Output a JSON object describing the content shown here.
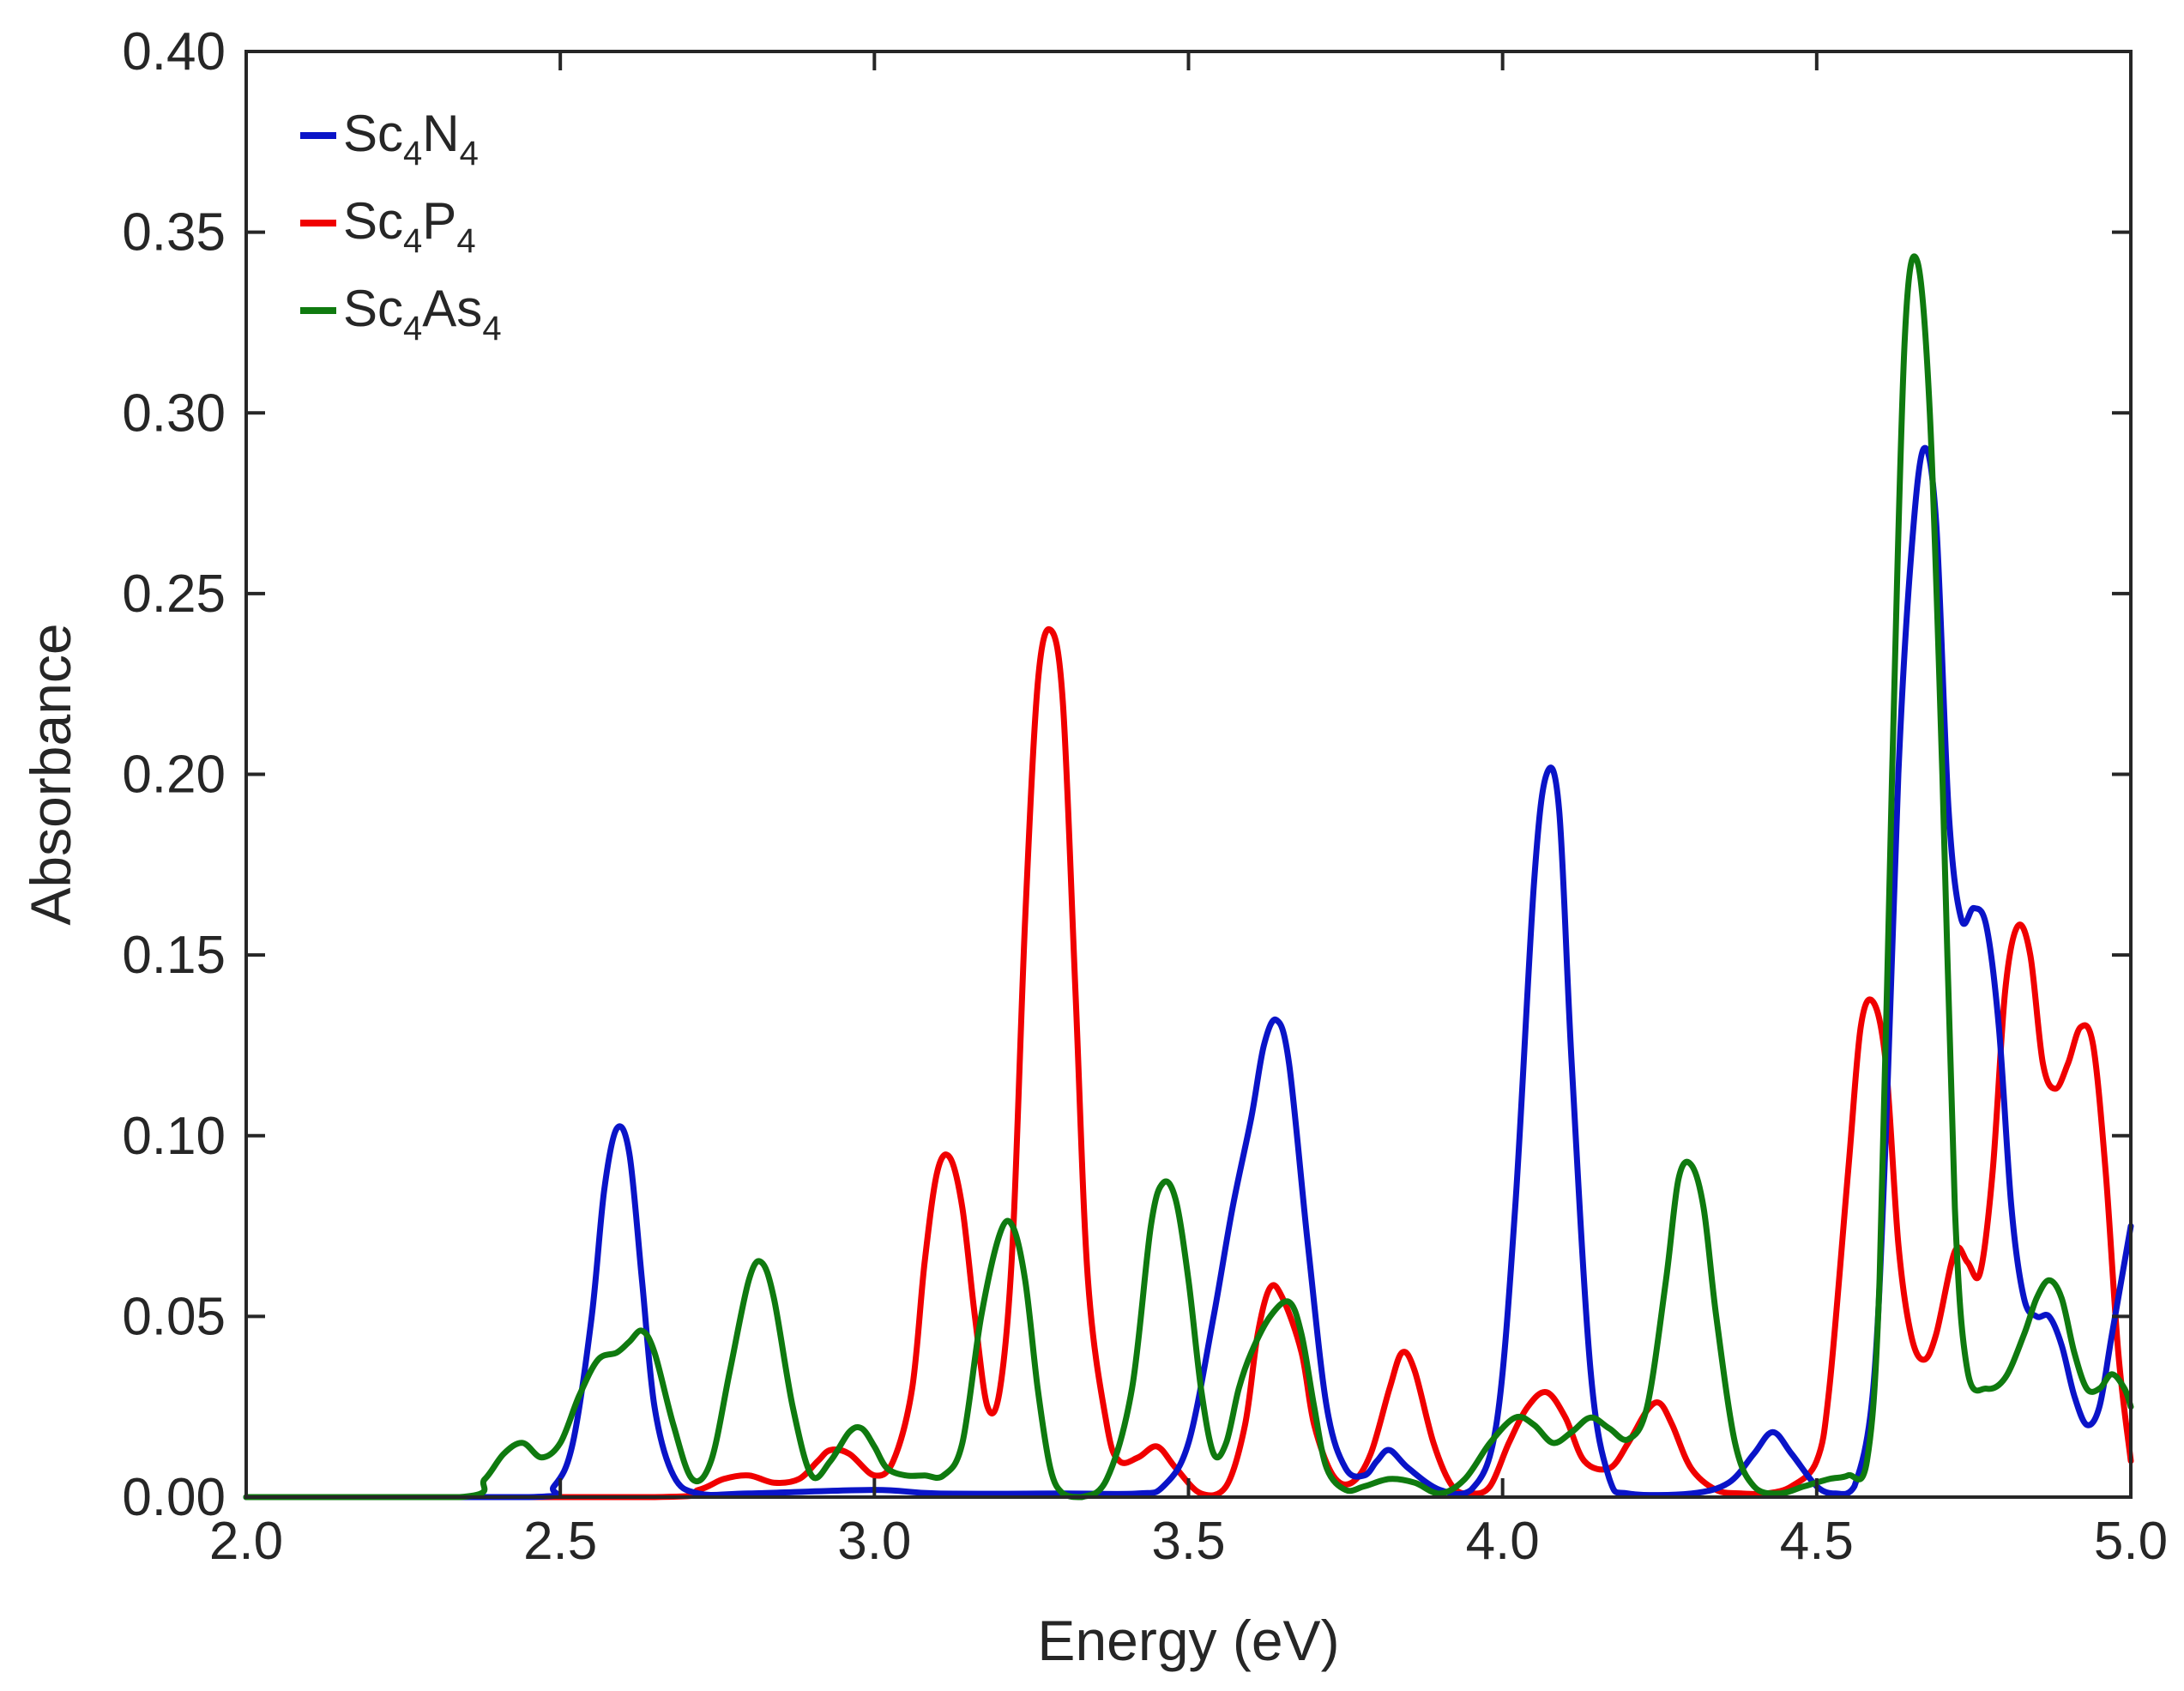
{
  "chart_data": {
    "type": "line",
    "title": "",
    "xlabel": "Energy (eV)",
    "ylabel": "Absorbance",
    "xlim": [
      2.0,
      5.0
    ],
    "ylim": [
      0.0,
      0.4
    ],
    "xticks": [
      "2.0",
      "2.5",
      "3.0",
      "3.5",
      "4.0",
      "4.5",
      "5.0"
    ],
    "yticks": [
      "0.00",
      "0.05",
      "0.10",
      "0.15",
      "0.20",
      "0.25",
      "0.30",
      "0.35",
      "0.40"
    ],
    "grid": false,
    "legend_position": "top-left",
    "series": [
      {
        "name": "Sc4N4",
        "label_parts": [
          [
            "Sc",
            false
          ],
          [
            "4",
            true
          ],
          [
            "N",
            false
          ],
          [
            "4",
            true
          ]
        ],
        "color": "#0a14c8",
        "x": [
          2.0,
          2.45,
          2.49,
          2.52,
          2.55,
          2.57,
          2.59,
          2.61,
          2.63,
          2.65,
          2.68,
          2.72,
          2.8,
          3.0,
          3.1,
          3.3,
          3.42,
          3.46,
          3.5,
          3.54,
          3.57,
          3.6,
          3.62,
          3.64,
          3.66,
          3.69,
          3.72,
          3.75,
          3.78,
          3.8,
          3.82,
          3.85,
          3.9,
          3.95,
          3.99,
          4.02,
          4.05,
          4.07,
          4.09,
          4.11,
          4.14,
          4.17,
          4.2,
          4.3,
          4.36,
          4.4,
          4.43,
          4.46,
          4.5,
          4.53,
          4.56,
          4.59,
          4.61,
          4.63,
          4.65,
          4.67,
          4.69,
          4.71,
          4.73,
          4.75,
          4.77,
          4.79,
          4.81,
          4.83,
          4.85,
          4.87,
          4.89,
          4.91,
          4.93,
          4.95,
          4.97,
          5.0
        ],
        "y": [
          0.0,
          0.0,
          0.003,
          0.015,
          0.05,
          0.085,
          0.102,
          0.095,
          0.06,
          0.025,
          0.006,
          0.001,
          0.001,
          0.002,
          0.001,
          0.001,
          0.001,
          0.003,
          0.015,
          0.05,
          0.08,
          0.105,
          0.125,
          0.132,
          0.12,
          0.07,
          0.025,
          0.008,
          0.006,
          0.01,
          0.013,
          0.008,
          0.002,
          0.002,
          0.02,
          0.08,
          0.17,
          0.2,
          0.19,
          0.12,
          0.035,
          0.005,
          0.001,
          0.001,
          0.004,
          0.012,
          0.018,
          0.012,
          0.003,
          0.001,
          0.003,
          0.03,
          0.1,
          0.2,
          0.26,
          0.29,
          0.27,
          0.19,
          0.16,
          0.163,
          0.158,
          0.13,
          0.08,
          0.055,
          0.05,
          0.05,
          0.042,
          0.028,
          0.02,
          0.025,
          0.045,
          0.075
        ]
      },
      {
        "name": "Sc4P4",
        "label_parts": [
          [
            "Sc",
            false
          ],
          [
            "4",
            true
          ],
          [
            "P",
            false
          ],
          [
            "4",
            true
          ]
        ],
        "color": "#f00000",
        "x": [
          2.0,
          2.65,
          2.72,
          2.76,
          2.8,
          2.84,
          2.88,
          2.91,
          2.93,
          2.96,
          3.0,
          3.03,
          3.06,
          3.08,
          3.1,
          3.12,
          3.14,
          3.16,
          3.18,
          3.2,
          3.22,
          3.24,
          3.26,
          3.28,
          3.3,
          3.32,
          3.34,
          3.37,
          3.39,
          3.42,
          3.45,
          3.48,
          3.52,
          3.56,
          3.59,
          3.61,
          3.63,
          3.65,
          3.68,
          3.7,
          3.73,
          3.76,
          3.79,
          3.82,
          3.84,
          3.86,
          3.89,
          3.92,
          3.95,
          3.98,
          4.01,
          4.04,
          4.07,
          4.1,
          4.13,
          4.17,
          4.2,
          4.23,
          4.25,
          4.27,
          4.3,
          4.34,
          4.38,
          4.42,
          4.46,
          4.5,
          4.52,
          4.55,
          4.57,
          4.59,
          4.61,
          4.63,
          4.65,
          4.67,
          4.69,
          4.72,
          4.74,
          4.76,
          4.78,
          4.8,
          4.82,
          4.84,
          4.86,
          4.88,
          4.9,
          4.92,
          4.94,
          4.96,
          4.98,
          5.0
        ],
        "y": [
          0.0,
          0.0,
          0.002,
          0.005,
          0.006,
          0.004,
          0.005,
          0.01,
          0.013,
          0.012,
          0.006,
          0.01,
          0.03,
          0.065,
          0.09,
          0.094,
          0.08,
          0.05,
          0.025,
          0.03,
          0.07,
          0.16,
          0.225,
          0.24,
          0.22,
          0.14,
          0.06,
          0.02,
          0.01,
          0.011,
          0.014,
          0.008,
          0.001,
          0.003,
          0.02,
          0.045,
          0.058,
          0.055,
          0.04,
          0.02,
          0.006,
          0.004,
          0.012,
          0.03,
          0.04,
          0.035,
          0.015,
          0.003,
          0.001,
          0.003,
          0.015,
          0.025,
          0.029,
          0.022,
          0.01,
          0.008,
          0.015,
          0.024,
          0.026,
          0.02,
          0.008,
          0.002,
          0.001,
          0.001,
          0.003,
          0.01,
          0.03,
          0.09,
          0.13,
          0.137,
          0.12,
          0.07,
          0.045,
          0.038,
          0.045,
          0.068,
          0.065,
          0.062,
          0.09,
          0.14,
          0.158,
          0.15,
          0.12,
          0.113,
          0.12,
          0.13,
          0.125,
          0.09,
          0.04,
          0.01
        ]
      },
      {
        "name": "Sc4As4",
        "label_parts": [
          [
            "Sc",
            false
          ],
          [
            "4",
            true
          ],
          [
            "As",
            false
          ],
          [
            "4",
            true
          ]
        ],
        "color": "#0f7a0f",
        "x": [
          2.0,
          2.34,
          2.38,
          2.41,
          2.44,
          2.47,
          2.5,
          2.53,
          2.56,
          2.59,
          2.61,
          2.63,
          2.65,
          2.68,
          2.71,
          2.74,
          2.77,
          2.8,
          2.82,
          2.84,
          2.87,
          2.9,
          2.93,
          2.96,
          2.98,
          3.0,
          3.02,
          3.05,
          3.08,
          3.11,
          3.14,
          3.17,
          3.2,
          3.22,
          3.24,
          3.26,
          3.28,
          3.3,
          3.33,
          3.37,
          3.41,
          3.44,
          3.46,
          3.48,
          3.5,
          3.52,
          3.54,
          3.56,
          3.58,
          3.6,
          3.63,
          3.66,
          3.68,
          3.7,
          3.72,
          3.75,
          3.78,
          3.82,
          3.86,
          3.9,
          3.94,
          3.98,
          4.02,
          4.05,
          4.08,
          4.11,
          4.14,
          4.17,
          4.2,
          4.23,
          4.26,
          4.28,
          4.3,
          4.32,
          4.34,
          4.37,
          4.4,
          4.44,
          4.48,
          4.52,
          4.55,
          4.58,
          4.6,
          4.62,
          4.64,
          4.66,
          4.68,
          4.7,
          4.72,
          4.74,
          4.77,
          4.8,
          4.83,
          4.85,
          4.87,
          4.89,
          4.91,
          4.93,
          4.95,
          4.97,
          4.99,
          5.0
        ],
        "y": [
          0.0,
          0.0,
          0.005,
          0.012,
          0.015,
          0.011,
          0.015,
          0.028,
          0.038,
          0.04,
          0.043,
          0.046,
          0.04,
          0.02,
          0.005,
          0.01,
          0.035,
          0.06,
          0.065,
          0.055,
          0.025,
          0.006,
          0.01,
          0.018,
          0.019,
          0.014,
          0.008,
          0.006,
          0.006,
          0.006,
          0.015,
          0.05,
          0.073,
          0.075,
          0.06,
          0.03,
          0.008,
          0.001,
          0.0,
          0.005,
          0.03,
          0.075,
          0.087,
          0.082,
          0.06,
          0.03,
          0.012,
          0.015,
          0.03,
          0.04,
          0.05,
          0.054,
          0.045,
          0.025,
          0.008,
          0.002,
          0.003,
          0.005,
          0.004,
          0.001,
          0.005,
          0.015,
          0.022,
          0.02,
          0.015,
          0.018,
          0.022,
          0.019,
          0.016,
          0.025,
          0.06,
          0.088,
          0.092,
          0.08,
          0.05,
          0.015,
          0.003,
          0.001,
          0.003,
          0.005,
          0.006,
          0.01,
          0.06,
          0.2,
          0.32,
          0.342,
          0.3,
          0.2,
          0.08,
          0.035,
          0.03,
          0.033,
          0.045,
          0.055,
          0.06,
          0.055,
          0.04,
          0.03,
          0.03,
          0.034,
          0.03,
          0.025
        ]
      }
    ]
  }
}
